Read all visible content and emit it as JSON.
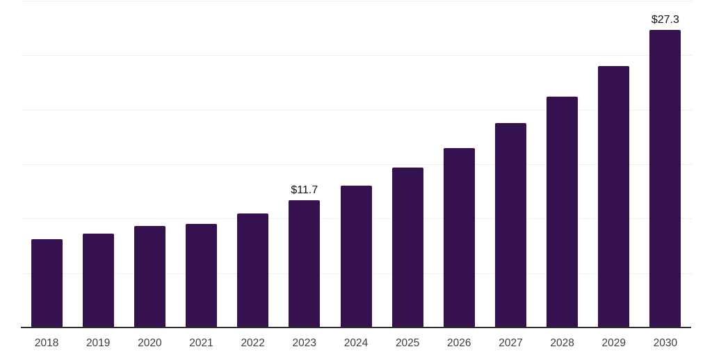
{
  "chart_data": {
    "type": "bar",
    "title": "",
    "xlabel": "",
    "ylabel": "",
    "categories": [
      "2018",
      "2019",
      "2020",
      "2021",
      "2022",
      "2023",
      "2024",
      "2025",
      "2026",
      "2027",
      "2028",
      "2029",
      "2030"
    ],
    "values": [
      8.1,
      8.6,
      9.3,
      9.5,
      10.5,
      11.7,
      13.0,
      14.7,
      16.5,
      18.8,
      21.2,
      24.0,
      27.3
    ],
    "data_labels": [
      "",
      "",
      "",
      "",
      "",
      "$11.7",
      "",
      "",
      "",
      "",
      "",
      "",
      "$27.3"
    ],
    "ylim": [
      0,
      30
    ],
    "gridline_step": 5,
    "grid": true,
    "legend": "none",
    "y_axis_tick_labels": "none",
    "colors": {
      "bar": "#351150",
      "gridline": "#efefef",
      "axis_line": "#2e2e2e",
      "tick_label": "#3d3d3d",
      "data_label": "#111111",
      "background": "#ffffff"
    }
  }
}
